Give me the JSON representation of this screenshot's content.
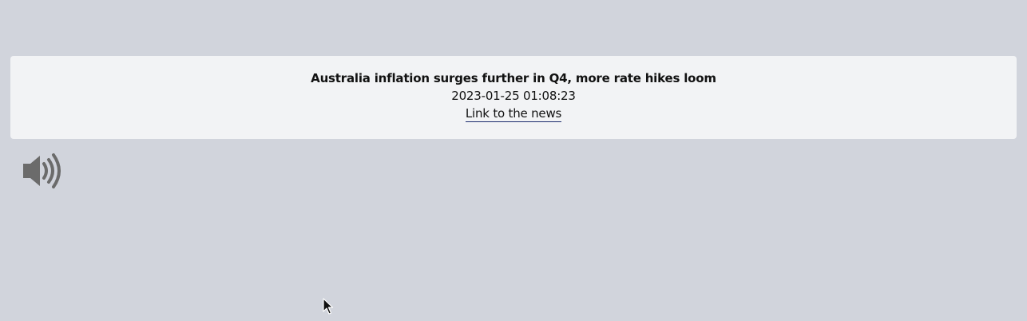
{
  "news": {
    "headline": "Australia inflation surges further in Q4, more rate hikes loom",
    "timestamp": "2023-01-25 01:08:23",
    "link_label": "Link to the news"
  },
  "icons": {
    "speaker": "speaker-volume-icon",
    "cursor": "mouse-pointer-icon"
  },
  "colors": {
    "page_background": "#d1d4dc",
    "card_background": "#f2f3f5",
    "link_underline": "#1a2a6c",
    "icon": "#6b6b6b"
  }
}
